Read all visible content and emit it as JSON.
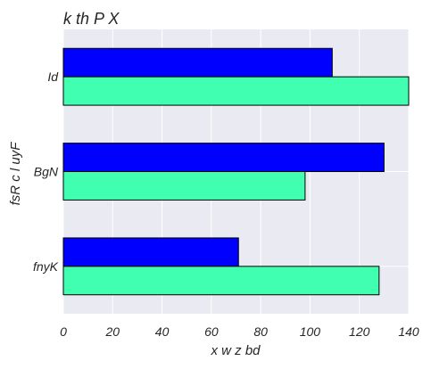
{
  "chart_data": {
    "type": "bar",
    "orientation": "horizontal",
    "title": "k th  P X",
    "xlabel": "x w z bd",
    "ylabel": "fsR c l uyF",
    "categories": [
      "Id",
      "BgN",
      "fnyK"
    ],
    "series": [
      {
        "values": [
          109,
          130,
          71
        ],
        "color": "#0000ff"
      },
      {
        "values": [
          140,
          98,
          128
        ],
        "color": "#40ffb0"
      }
    ],
    "xlim": [
      0,
      140
    ],
    "xticks": [
      0,
      20,
      40,
      60,
      80,
      100,
      120,
      140
    ],
    "grid": true,
    "background": "#eaeaf2",
    "legend": "none"
  }
}
